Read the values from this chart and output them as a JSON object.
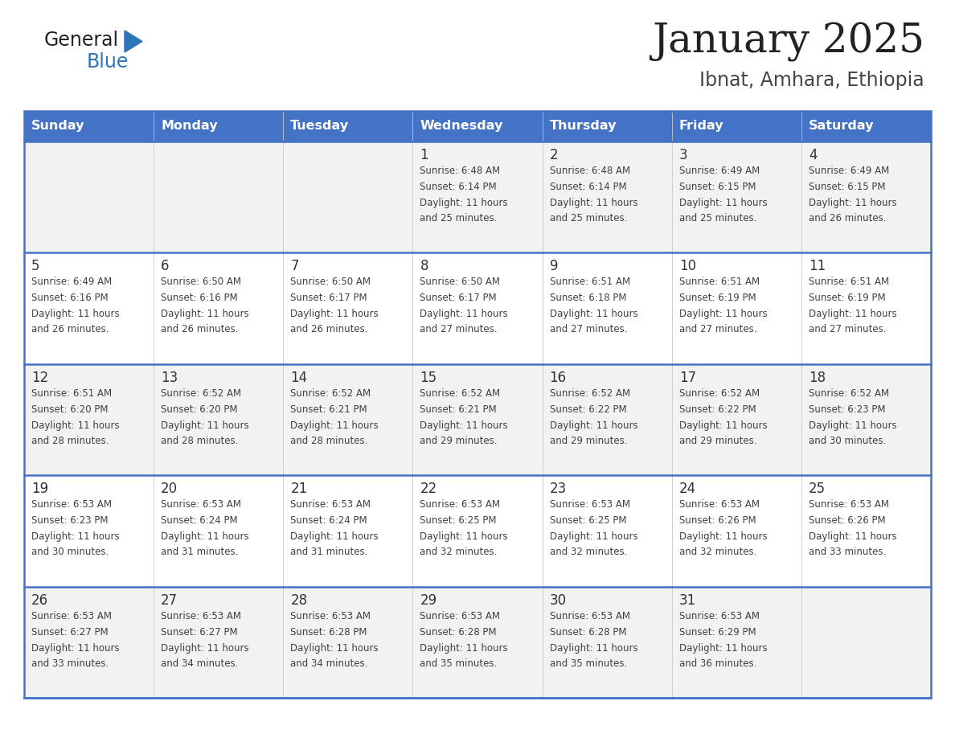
{
  "title": "January 2025",
  "subtitle": "Ibnat, Amhara, Ethiopia",
  "days_of_week": [
    "Sunday",
    "Monday",
    "Tuesday",
    "Wednesday",
    "Thursday",
    "Friday",
    "Saturday"
  ],
  "header_bg": "#4472C4",
  "header_text_color": "#FFFFFF",
  "row_bg_odd": "#F2F2F2",
  "row_bg_even": "#FFFFFF",
  "cell_text_color": "#404040",
  "day_num_color": "#333333",
  "divider_color": "#4472C4",
  "logo_general_color": "#222222",
  "logo_blue_color": "#2E75B6",
  "logo_triangle_color": "#2E75B6",
  "title_color": "#222222",
  "subtitle_color": "#444444",
  "calendar_data": [
    [
      null,
      null,
      null,
      {
        "day": 1,
        "sunrise": "6:48 AM",
        "sunset": "6:14 PM",
        "daylight": "11 hours and 25 minutes"
      },
      {
        "day": 2,
        "sunrise": "6:48 AM",
        "sunset": "6:14 PM",
        "daylight": "11 hours and 25 minutes"
      },
      {
        "day": 3,
        "sunrise": "6:49 AM",
        "sunset": "6:15 PM",
        "daylight": "11 hours and 25 minutes"
      },
      {
        "day": 4,
        "sunrise": "6:49 AM",
        "sunset": "6:15 PM",
        "daylight": "11 hours and 26 minutes"
      }
    ],
    [
      {
        "day": 5,
        "sunrise": "6:49 AM",
        "sunset": "6:16 PM",
        "daylight": "11 hours and 26 minutes"
      },
      {
        "day": 6,
        "sunrise": "6:50 AM",
        "sunset": "6:16 PM",
        "daylight": "11 hours and 26 minutes"
      },
      {
        "day": 7,
        "sunrise": "6:50 AM",
        "sunset": "6:17 PM",
        "daylight": "11 hours and 26 minutes"
      },
      {
        "day": 8,
        "sunrise": "6:50 AM",
        "sunset": "6:17 PM",
        "daylight": "11 hours and 27 minutes"
      },
      {
        "day": 9,
        "sunrise": "6:51 AM",
        "sunset": "6:18 PM",
        "daylight": "11 hours and 27 minutes"
      },
      {
        "day": 10,
        "sunrise": "6:51 AM",
        "sunset": "6:19 PM",
        "daylight": "11 hours and 27 minutes"
      },
      {
        "day": 11,
        "sunrise": "6:51 AM",
        "sunset": "6:19 PM",
        "daylight": "11 hours and 27 minutes"
      }
    ],
    [
      {
        "day": 12,
        "sunrise": "6:51 AM",
        "sunset": "6:20 PM",
        "daylight": "11 hours and 28 minutes"
      },
      {
        "day": 13,
        "sunrise": "6:52 AM",
        "sunset": "6:20 PM",
        "daylight": "11 hours and 28 minutes"
      },
      {
        "day": 14,
        "sunrise": "6:52 AM",
        "sunset": "6:21 PM",
        "daylight": "11 hours and 28 minutes"
      },
      {
        "day": 15,
        "sunrise": "6:52 AM",
        "sunset": "6:21 PM",
        "daylight": "11 hours and 29 minutes"
      },
      {
        "day": 16,
        "sunrise": "6:52 AM",
        "sunset": "6:22 PM",
        "daylight": "11 hours and 29 minutes"
      },
      {
        "day": 17,
        "sunrise": "6:52 AM",
        "sunset": "6:22 PM",
        "daylight": "11 hours and 29 minutes"
      },
      {
        "day": 18,
        "sunrise": "6:52 AM",
        "sunset": "6:23 PM",
        "daylight": "11 hours and 30 minutes"
      }
    ],
    [
      {
        "day": 19,
        "sunrise": "6:53 AM",
        "sunset": "6:23 PM",
        "daylight": "11 hours and 30 minutes"
      },
      {
        "day": 20,
        "sunrise": "6:53 AM",
        "sunset": "6:24 PM",
        "daylight": "11 hours and 31 minutes"
      },
      {
        "day": 21,
        "sunrise": "6:53 AM",
        "sunset": "6:24 PM",
        "daylight": "11 hours and 31 minutes"
      },
      {
        "day": 22,
        "sunrise": "6:53 AM",
        "sunset": "6:25 PM",
        "daylight": "11 hours and 32 minutes"
      },
      {
        "day": 23,
        "sunrise": "6:53 AM",
        "sunset": "6:25 PM",
        "daylight": "11 hours and 32 minutes"
      },
      {
        "day": 24,
        "sunrise": "6:53 AM",
        "sunset": "6:26 PM",
        "daylight": "11 hours and 32 minutes"
      },
      {
        "day": 25,
        "sunrise": "6:53 AM",
        "sunset": "6:26 PM",
        "daylight": "11 hours and 33 minutes"
      }
    ],
    [
      {
        "day": 26,
        "sunrise": "6:53 AM",
        "sunset": "6:27 PM",
        "daylight": "11 hours and 33 minutes"
      },
      {
        "day": 27,
        "sunrise": "6:53 AM",
        "sunset": "6:27 PM",
        "daylight": "11 hours and 34 minutes"
      },
      {
        "day": 28,
        "sunrise": "6:53 AM",
        "sunset": "6:28 PM",
        "daylight": "11 hours and 34 minutes"
      },
      {
        "day": 29,
        "sunrise": "6:53 AM",
        "sunset": "6:28 PM",
        "daylight": "11 hours and 35 minutes"
      },
      {
        "day": 30,
        "sunrise": "6:53 AM",
        "sunset": "6:28 PM",
        "daylight": "11 hours and 35 minutes"
      },
      {
        "day": 31,
        "sunrise": "6:53 AM",
        "sunset": "6:29 PM",
        "daylight": "11 hours and 36 minutes"
      },
      null
    ]
  ]
}
